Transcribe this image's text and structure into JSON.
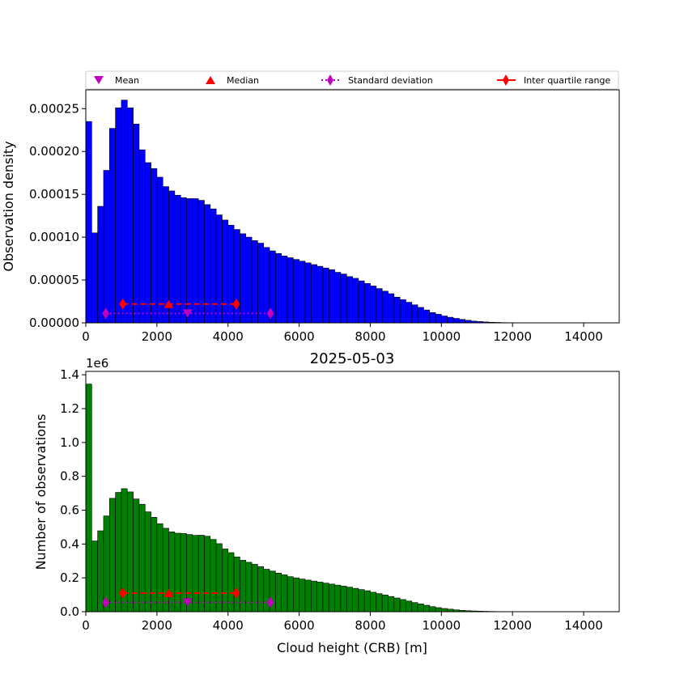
{
  "chart_data": [
    {
      "type": "bar",
      "panel": "top",
      "title": "",
      "xlabel": "",
      "ylabel": "Observation density",
      "xlim": [
        0,
        15000
      ],
      "ylim": [
        0,
        0.000272
      ],
      "xticks": [
        0,
        2000,
        4000,
        6000,
        8000,
        10000,
        12000,
        14000
      ],
      "xtick_labels": [
        "0",
        "2000",
        "4000",
        "6000",
        "8000",
        "10000",
        "12000",
        "14000"
      ],
      "yticks": [
        0,
        5e-05,
        0.0001,
        0.00015,
        0.0002,
        0.00025
      ],
      "ytick_labels": [
        "0.00000",
        "0.00005",
        "0.00010",
        "0.00015",
        "0.00020",
        "0.00025"
      ],
      "bar_color": "#0000ff",
      "bin_width": 166.7,
      "values": [
        0.000235,
        0.000105,
        0.000136,
        0.000178,
        0.000227,
        0.000251,
        0.00026,
        0.000251,
        0.000232,
        0.000202,
        0.000187,
        0.00018,
        0.00017,
        0.000159,
        0.000154,
        0.000149,
        0.000146,
        0.000145,
        0.000145,
        0.000143,
        0.000138,
        0.000133,
        0.000126,
        0.00012,
        0.000114,
        0.000109,
        0.000104,
        0.0001,
        9.6e-05,
        9.3e-05,
        8.8e-05,
        8.4e-05,
        8.1e-05,
        7.8e-05,
        7.6e-05,
        7.4e-05,
        7.2e-05,
        7e-05,
        6.8e-05,
        6.6e-05,
        6.4e-05,
        6.2e-05,
        5.9e-05,
        5.7e-05,
        5.4e-05,
        5.2e-05,
        4.9e-05,
        4.6e-05,
        4.3e-05,
        4e-05,
        3.7e-05,
        3.4e-05,
        3e-05,
        2.7e-05,
        2.4e-05,
        2.1e-05,
        1.8e-05,
        1.5e-05,
        1.2e-05,
        1e-05,
        8e-06,
        6.5e-06,
        5.2e-06,
        4e-06,
        3e-06,
        2e-06,
        1.5e-06,
        1e-06,
        7e-07,
        5e-07,
        3e-07,
        2e-07,
        1e-07,
        5e-08,
        2e-08,
        1e-08,
        1e-08,
        0,
        0,
        0,
        0,
        0,
        0,
        0,
        0,
        0,
        0,
        0,
        0,
        0
      ],
      "stats": {
        "mean": 2860,
        "median": 2330,
        "std_range": [
          560,
          5190
        ],
        "iqr_range": [
          1040,
          4230
        ],
        "std_y": 1.1e-05,
        "mean_y": 1.1e-05,
        "iqr_y": 2.2e-05,
        "median_y": 2.2e-05
      },
      "legend": {
        "placement": "top, above plot, single row",
        "entries": [
          "Mean",
          "Median",
          "Standard deviation",
          "Inter quartile range"
        ]
      }
    },
    {
      "type": "bar",
      "panel": "bottom",
      "title": "2025-05-03",
      "xlabel": "Cloud height (CRB) [m]",
      "ylabel": "Number of observations",
      "offset_label": "1e6",
      "xlim": [
        0,
        15000
      ],
      "ylim": [
        0,
        1420000
      ],
      "xticks": [
        0,
        2000,
        4000,
        6000,
        8000,
        10000,
        12000,
        14000
      ],
      "xtick_labels": [
        "0",
        "2000",
        "4000",
        "6000",
        "8000",
        "10000",
        "12000",
        "14000"
      ],
      "yticks": [
        0,
        200000,
        400000,
        600000,
        800000,
        1000000,
        1200000,
        1400000
      ],
      "ytick_labels": [
        "0.0",
        "0.2",
        "0.4",
        "0.6",
        "0.8",
        "1.0",
        "1.2",
        "1.4"
      ],
      "bar_color": "#008000",
      "bin_width": 166.7,
      "values": [
        1345000,
        418000,
        478000,
        566000,
        670000,
        705000,
        727000,
        708000,
        666000,
        635000,
        590000,
        558000,
        520000,
        493000,
        472000,
        464000,
        462000,
        456000,
        451000,
        452000,
        446000,
        427000,
        402000,
        371000,
        349000,
        324000,
        304000,
        292000,
        280000,
        266000,
        251000,
        240000,
        228000,
        218000,
        207000,
        200000,
        193000,
        187000,
        181000,
        175000,
        169000,
        163000,
        157000,
        151000,
        145000,
        138000,
        131000,
        124000,
        115000,
        107000,
        99000,
        90000,
        81000,
        72000,
        63000,
        54000,
        46000,
        38000,
        30000,
        24000,
        19000,
        15000,
        11000,
        8000,
        6000,
        4500,
        3300,
        2400,
        1700,
        1100,
        700,
        400,
        250,
        150,
        90,
        50,
        30,
        20,
        10,
        5,
        0,
        0,
        0,
        0,
        0,
        0,
        0,
        0,
        0,
        0
      ],
      "stats": {
        "mean": 2860,
        "median": 2330,
        "std_range": [
          560,
          5190
        ],
        "iqr_range": [
          1040,
          4230
        ],
        "std_y": 55000,
        "mean_y": 55000,
        "iqr_y": 110000,
        "median_y": 110000
      }
    }
  ],
  "colors": {
    "mean": "#bf00bf",
    "median": "#ff0000",
    "std": "#bf00bf",
    "iqr": "#ff0000"
  }
}
